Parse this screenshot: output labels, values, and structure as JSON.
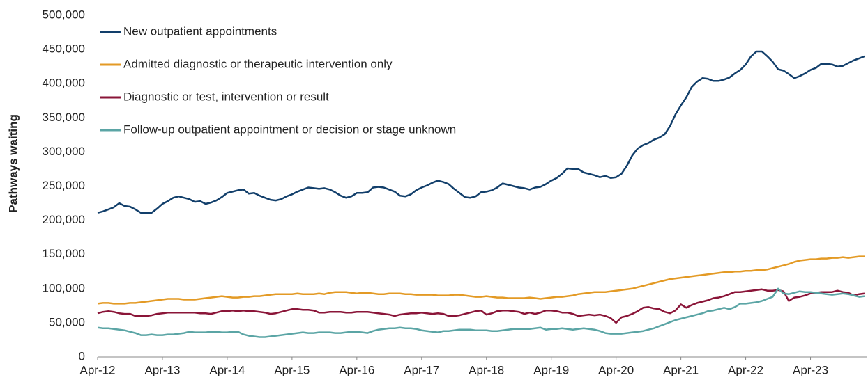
{
  "chart_data": {
    "type": "line",
    "y_label": "Pathways waiting",
    "legend": "upper left",
    "categories": [
      "Apr-12",
      null,
      null,
      null,
      null,
      null,
      null,
      null,
      null,
      null,
      null,
      null,
      "Apr-13",
      null,
      null,
      null,
      null,
      null,
      null,
      null,
      null,
      null,
      null,
      null,
      "Apr-14",
      null,
      null,
      null,
      null,
      null,
      null,
      null,
      null,
      null,
      null,
      null,
      "Apr-15",
      null,
      null,
      null,
      null,
      null,
      null,
      null,
      null,
      null,
      null,
      null,
      "Apr-16",
      null,
      null,
      null,
      null,
      null,
      null,
      null,
      null,
      null,
      null,
      null,
      "Apr-17",
      null,
      null,
      null,
      null,
      null,
      null,
      null,
      null,
      null,
      null,
      null,
      "Apr-18",
      null,
      null,
      null,
      null,
      null,
      null,
      null,
      null,
      null,
      null,
      null,
      "Apr-19",
      null,
      null,
      null,
      null,
      null,
      null,
      null,
      null,
      null,
      null,
      null,
      "Apr-20",
      null,
      null,
      null,
      null,
      null,
      null,
      null,
      null,
      null,
      null,
      null,
      "Apr-21",
      null,
      null,
      null,
      null,
      null,
      null,
      null,
      null,
      null,
      null,
      null,
      "Apr-22",
      null,
      null,
      null,
      null,
      null,
      null,
      null,
      null,
      null,
      null,
      null,
      "Apr-23",
      null,
      null,
      null,
      null,
      null,
      null,
      null,
      null,
      null,
      null
    ],
    "ylim": [
      0,
      500000
    ],
    "yticks": [
      0,
      {
        "value": 50000,
        "label": "50,000"
      },
      {
        "value": 100000,
        "label": "100,000"
      },
      {
        "value": 150000,
        "label": "150,000"
      },
      {
        "value": 200000,
        "label": "200,000"
      },
      {
        "value": 250000,
        "label": "250,000"
      },
      {
        "value": 300000,
        "label": "300,000"
      },
      {
        "value": 350000,
        "label": "350,000"
      },
      {
        "value": 400000,
        "label": "400,000"
      },
      {
        "value": 450000,
        "label": "450,000"
      },
      {
        "value": 500000,
        "label": "500,000"
      }
    ],
    "grid": false,
    "series": [
      {
        "name": "New outpatient appointments",
        "color": "#123f6b",
        "values": [
          211000,
          213000,
          216000,
          219000,
          225000,
          221000,
          220000,
          216000,
          211000,
          211000,
          211000,
          217000,
          224000,
          228000,
          233000,
          235000,
          233000,
          231000,
          227000,
          228000,
          224000,
          226000,
          229000,
          234000,
          240000,
          242000,
          244000,
          245000,
          239000,
          240000,
          236000,
          233000,
          230000,
          229000,
          231000,
          235000,
          238000,
          242000,
          245000,
          248000,
          247000,
          246000,
          247000,
          245000,
          241000,
          236000,
          233000,
          235000,
          240000,
          240000,
          241000,
          248000,
          249000,
          248000,
          245000,
          242000,
          236000,
          235000,
          238000,
          244000,
          248000,
          251000,
          255000,
          258000,
          256000,
          253000,
          246000,
          240000,
          234000,
          233000,
          235000,
          241000,
          242000,
          244000,
          248000,
          254000,
          252000,
          250000,
          248000,
          247000,
          245000,
          248000,
          249000,
          253000,
          258000,
          262000,
          268000,
          276000,
          275000,
          275000,
          270000,
          268000,
          266000,
          263000,
          265000,
          262000,
          263000,
          268000,
          280000,
          295000,
          305000,
          310000,
          313000,
          318000,
          321000,
          326000,
          338000,
          355000,
          368000,
          380000,
          395000,
          403000,
          408000,
          407000,
          404000,
          404000,
          406000,
          409000,
          415000,
          420000,
          428000,
          440000,
          447000,
          447000,
          440000,
          432000,
          421000,
          419000,
          414000,
          408000,
          411000,
          415000,
          420000,
          423000,
          429000,
          429000,
          428000,
          425000,
          426000,
          430000,
          434000,
          437000,
          440000
        ]
      },
      {
        "name": "Admitted diagnostic or therapeutic intervention only",
        "color": "#e39a25",
        "values": [
          78000,
          79000,
          79000,
          78000,
          78000,
          78000,
          79000,
          79000,
          80000,
          81000,
          82000,
          83000,
          84000,
          85000,
          85000,
          85000,
          84000,
          84000,
          84000,
          85000,
          86000,
          87000,
          88000,
          89000,
          88000,
          87000,
          87000,
          88000,
          88000,
          89000,
          89000,
          90000,
          91000,
          92000,
          92000,
          92000,
          92000,
          93000,
          92000,
          92000,
          92000,
          93000,
          92000,
          94000,
          95000,
          95000,
          95000,
          94000,
          93000,
          94000,
          94000,
          93000,
          92000,
          92000,
          93000,
          93000,
          93000,
          92000,
          92000,
          91000,
          91000,
          91000,
          91000,
          90000,
          90000,
          90000,
          91000,
          91000,
          90000,
          89000,
          88000,
          88000,
          89000,
          88000,
          87000,
          87000,
          86000,
          86000,
          86000,
          86000,
          87000,
          86000,
          85000,
          86000,
          87000,
          88000,
          88000,
          89000,
          90000,
          92000,
          93000,
          94000,
          95000,
          95000,
          95000,
          96000,
          97000,
          98000,
          99000,
          100000,
          102000,
          104000,
          106000,
          108000,
          110000,
          112000,
          114000,
          115000,
          116000,
          117000,
          118000,
          119000,
          120000,
          121000,
          122000,
          123000,
          124000,
          124000,
          125000,
          125000,
          126000,
          126000,
          127000,
          127000,
          128000,
          130000,
          132000,
          134000,
          136000,
          139000,
          141000,
          142000,
          143000,
          143000,
          144000,
          144000,
          145000,
          145000,
          146000,
          145000,
          146000,
          147000,
          147000
        ]
      },
      {
        "name": "Diagnostic or test, intervention or result",
        "color": "#8a1538",
        "values": [
          64000,
          66000,
          67000,
          66000,
          64000,
          63000,
          63000,
          60000,
          60000,
          60000,
          61000,
          63000,
          64000,
          65000,
          65000,
          65000,
          65000,
          65000,
          65000,
          64000,
          64000,
          63000,
          65000,
          67000,
          67000,
          68000,
          67000,
          68000,
          67000,
          67000,
          66000,
          65000,
          63000,
          64000,
          66000,
          68000,
          70000,
          70000,
          69000,
          69000,
          68000,
          65000,
          65000,
          66000,
          66000,
          66000,
          65000,
          65000,
          66000,
          66000,
          66000,
          65000,
          64000,
          63000,
          62000,
          60000,
          62000,
          63000,
          64000,
          64000,
          65000,
          64000,
          63000,
          64000,
          63000,
          60000,
          60000,
          61000,
          63000,
          65000,
          67000,
          68000,
          62000,
          64000,
          67000,
          68000,
          68000,
          67000,
          66000,
          63000,
          65000,
          63000,
          65000,
          68000,
          68000,
          67000,
          65000,
          65000,
          63000,
          60000,
          61000,
          62000,
          61000,
          62000,
          60000,
          57000,
          50000,
          58000,
          60000,
          63000,
          67000,
          72000,
          73000,
          71000,
          70000,
          66000,
          64000,
          68000,
          77000,
          72000,
          76000,
          79000,
          81000,
          83000,
          86000,
          87000,
          89000,
          92000,
          95000,
          95000,
          96000,
          97000,
          98000,
          99000,
          97000,
          97000,
          98000,
          96000,
          82000,
          87000,
          88000,
          90000,
          93000,
          94000,
          95000,
          95000,
          95000,
          97000,
          95000,
          94000,
          90000,
          92000,
          93000
        ]
      },
      {
        "name": "Follow-up outpatient appointment or decision or stage unknown",
        "color": "#5ba5a5",
        "values": [
          43000,
          42000,
          42000,
          41000,
          40000,
          39000,
          37000,
          35000,
          32000,
          32000,
          33000,
          32000,
          32000,
          33000,
          33000,
          34000,
          35000,
          37000,
          36000,
          36000,
          36000,
          37000,
          37000,
          36000,
          36000,
          37000,
          37000,
          33000,
          31000,
          30000,
          29000,
          29000,
          30000,
          31000,
          32000,
          33000,
          34000,
          35000,
          36000,
          35000,
          35000,
          36000,
          36000,
          36000,
          35000,
          35000,
          36000,
          37000,
          37000,
          36000,
          35000,
          38000,
          40000,
          41000,
          42000,
          42000,
          43000,
          42000,
          42000,
          41000,
          39000,
          38000,
          37000,
          36000,
          38000,
          38000,
          39000,
          40000,
          40000,
          40000,
          39000,
          39000,
          39000,
          38000,
          38000,
          39000,
          40000,
          41000,
          41000,
          41000,
          41000,
          42000,
          43000,
          40000,
          41000,
          41000,
          42000,
          41000,
          40000,
          41000,
          42000,
          41000,
          40000,
          38000,
          35000,
          34000,
          34000,
          34000,
          35000,
          36000,
          37000,
          38000,
          40000,
          42000,
          45000,
          48000,
          51000,
          54000,
          56000,
          58000,
          60000,
          62000,
          64000,
          67000,
          68000,
          70000,
          72000,
          70000,
          73000,
          78000,
          78000,
          79000,
          80000,
          82000,
          85000,
          88000,
          100000,
          93000,
          92000,
          94000,
          96000,
          95000,
          95000,
          94000,
          93000,
          92000,
          91000,
          92000,
          93000,
          92000,
          90000,
          88000,
          89000
        ]
      }
    ]
  }
}
